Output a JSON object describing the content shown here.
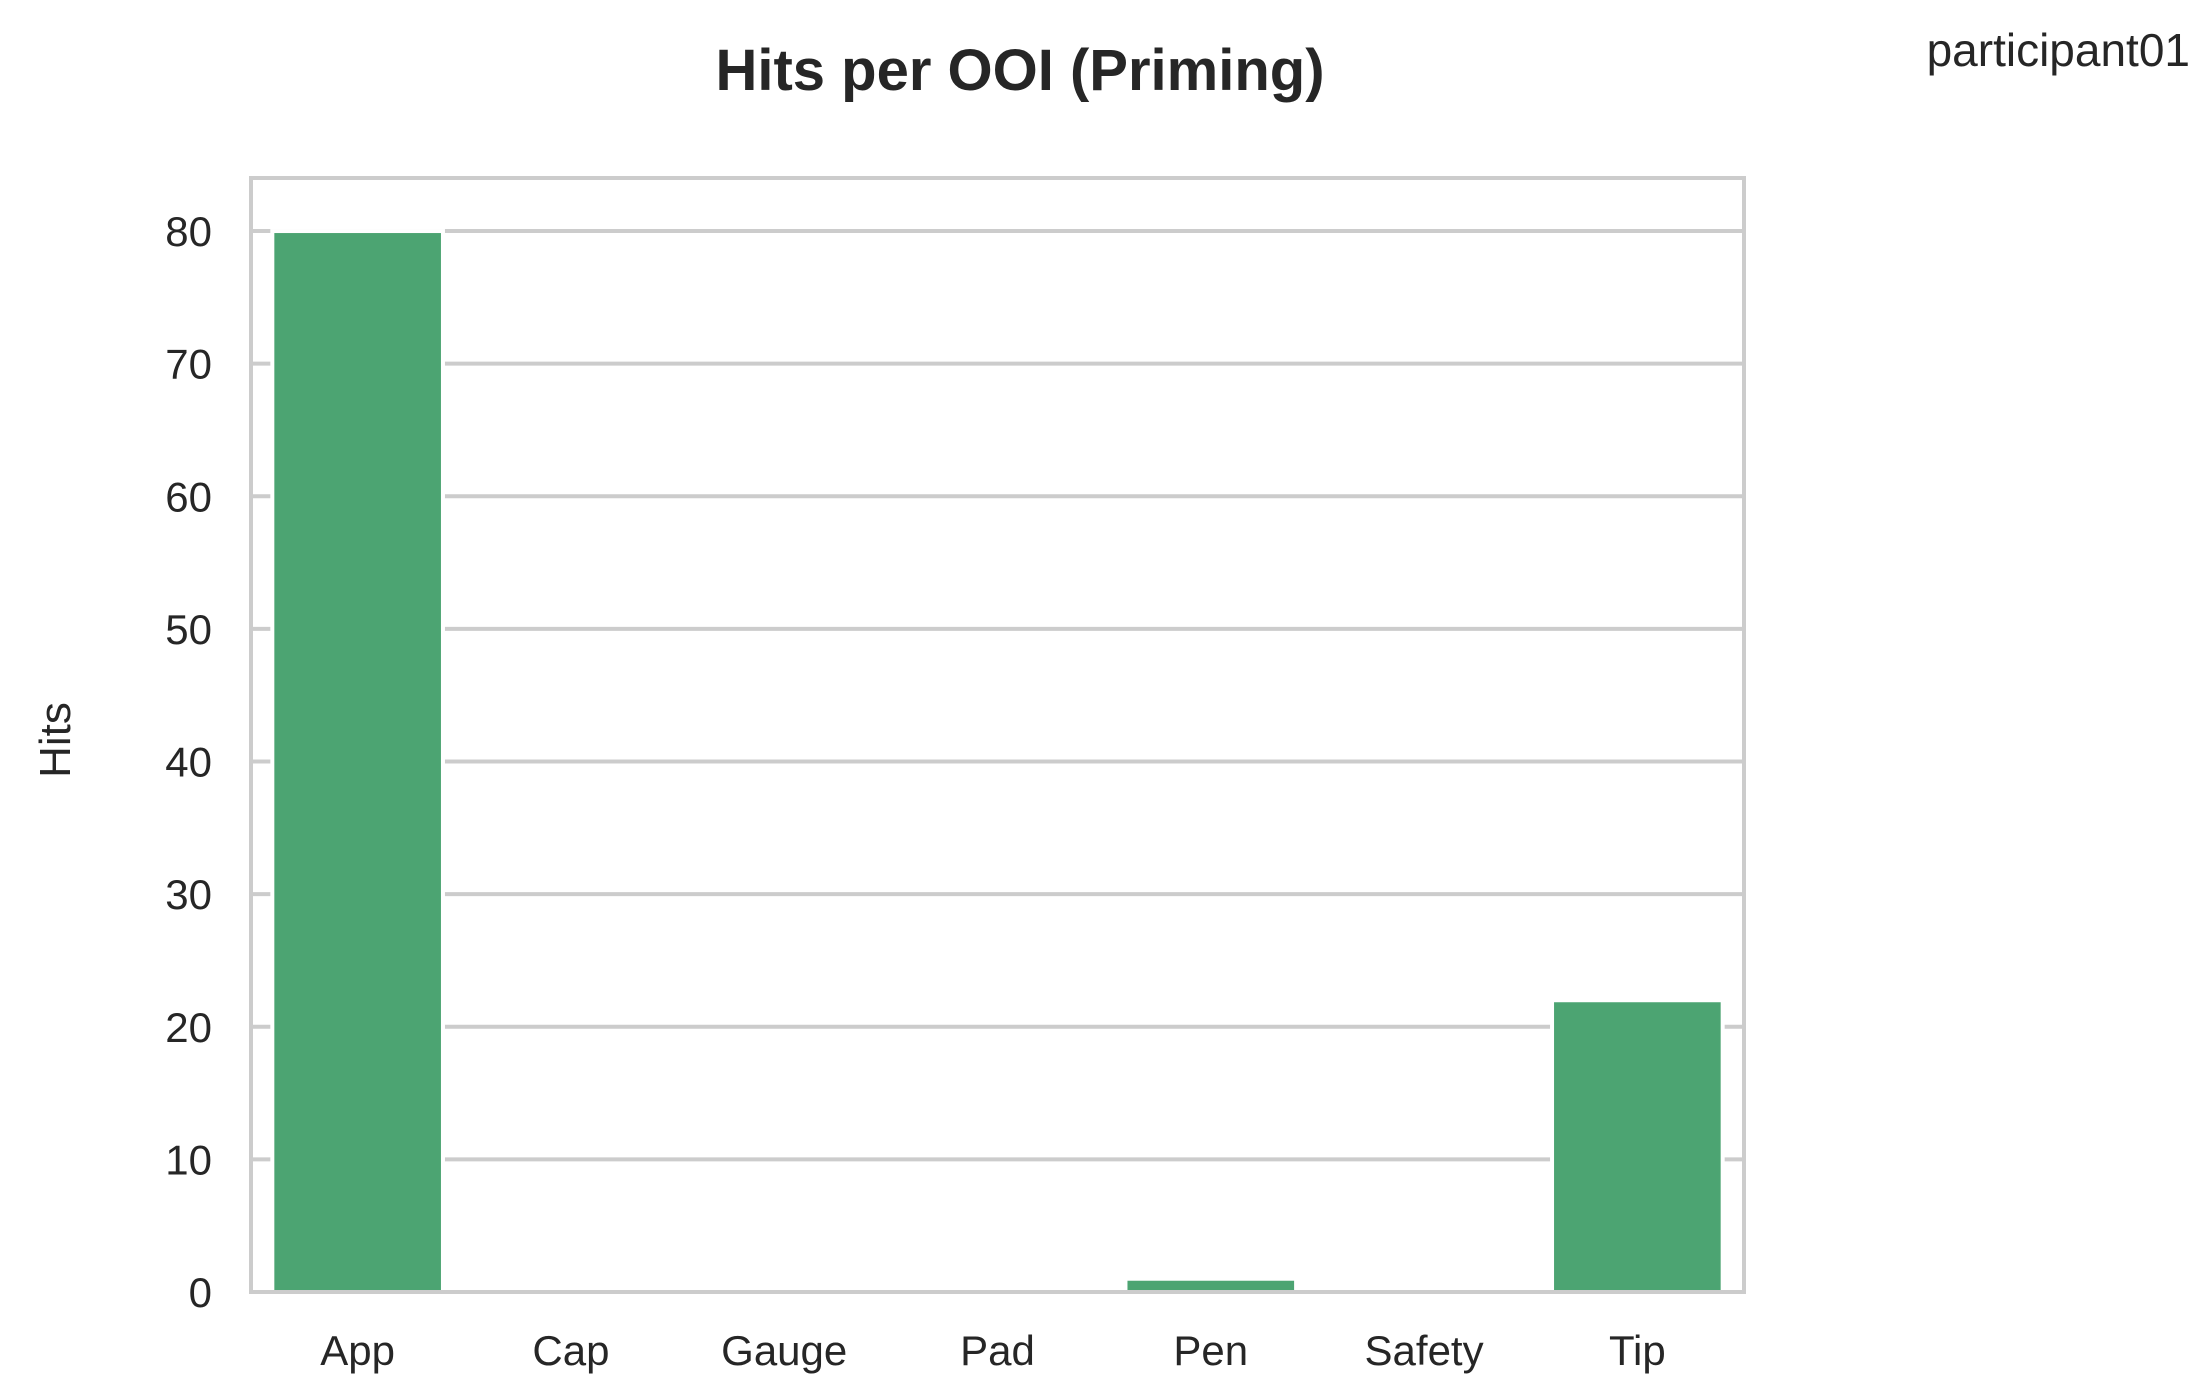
{
  "participant_label": "participant01",
  "chart_data": {
    "type": "bar",
    "title": "Hits per OOI (Priming)",
    "xlabel": "",
    "ylabel": "Hits",
    "categories": [
      "App",
      "Cap",
      "Gauge",
      "Pad",
      "Pen",
      "Safety",
      "Tip"
    ],
    "values": [
      80,
      0,
      0,
      0,
      1,
      0,
      22
    ],
    "ylim": [
      0,
      84
    ],
    "yticks": [
      0,
      10,
      20,
      30,
      40,
      50,
      60,
      70,
      80
    ],
    "grid": true,
    "bar_color": "#4ca472",
    "grid_color": "#cccccc",
    "text_color": "#262626"
  }
}
